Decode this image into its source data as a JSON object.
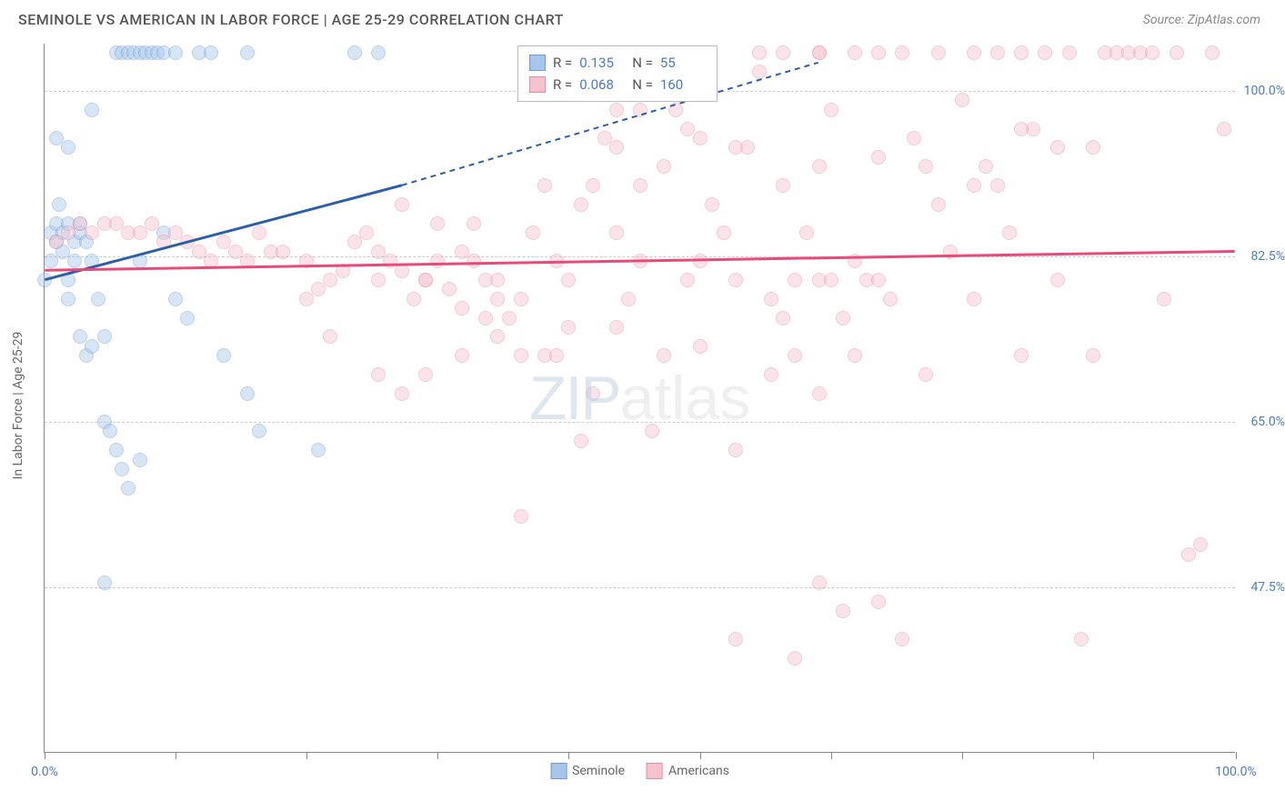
{
  "title": "SEMINOLE VS AMERICAN IN LABOR FORCE | AGE 25-29 CORRELATION CHART",
  "source": "Source: ZipAtlas.com",
  "y_axis_title": "In Labor Force | Age 25-29",
  "watermark_a": "ZIP",
  "watermark_b": "atlas",
  "chart": {
    "type": "scatter",
    "background_color": "#ffffff",
    "grid_color": "#cccccc",
    "axis_color": "#888888",
    "xlim": [
      0,
      100
    ],
    "ylim": [
      30,
      105
    ],
    "x_tick_positions": [
      0,
      11,
      22,
      33,
      44,
      55,
      66,
      77,
      88,
      100
    ],
    "x_tick_labels": {
      "0": "0.0%",
      "100": "100.0%"
    },
    "y_grid": [
      {
        "v": 47.5,
        "label": "47.5%"
      },
      {
        "v": 65.0,
        "label": "65.0%"
      },
      {
        "v": 82.5,
        "label": "82.5%"
      },
      {
        "v": 100.0,
        "label": "100.0%"
      }
    ],
    "marker_size": 16,
    "marker_opacity": 0.45,
    "series": [
      {
        "name": "Seminole",
        "fill_color": "#a8c6eb",
        "stroke_color": "#6a9bd8",
        "trend_color": "#2c5fa8",
        "R": "0.135",
        "N": "55",
        "trend": {
          "x1": 0,
          "y1": 80,
          "x2": 30,
          "y2": 90,
          "dash_x2": 65,
          "dash_y2": 103
        },
        "points": [
          [
            0,
            80
          ],
          [
            0.5,
            82
          ],
          [
            0.5,
            85
          ],
          [
            1,
            86
          ],
          [
            1,
            84
          ],
          [
            1.2,
            88
          ],
          [
            1.5,
            85
          ],
          [
            1.5,
            83
          ],
          [
            2,
            86
          ],
          [
            2,
            80
          ],
          [
            2,
            78
          ],
          [
            2.5,
            84
          ],
          [
            2.5,
            82
          ],
          [
            3,
            85
          ],
          [
            3,
            86
          ],
          [
            3.5,
            84
          ],
          [
            4,
            82
          ],
          [
            1,
            95
          ],
          [
            2,
            94
          ],
          [
            3,
            74
          ],
          [
            3.5,
            72
          ],
          [
            4,
            73
          ],
          [
            5,
            74
          ],
          [
            4.5,
            78
          ],
          [
            5,
            65
          ],
          [
            5.5,
            64
          ],
          [
            6,
            104
          ],
          [
            6.5,
            104
          ],
          [
            7,
            104
          ],
          [
            7.5,
            104
          ],
          [
            8,
            104
          ],
          [
            8.5,
            104
          ],
          [
            9,
            104
          ],
          [
            9.5,
            104
          ],
          [
            10,
            104
          ],
          [
            11,
            104
          ],
          [
            13,
            104
          ],
          [
            14,
            104
          ],
          [
            17,
            104
          ],
          [
            28,
            104
          ],
          [
            6,
            62
          ],
          [
            7,
            58
          ],
          [
            8,
            82
          ],
          [
            10,
            85
          ],
          [
            11,
            78
          ],
          [
            12,
            76
          ],
          [
            15,
            72
          ],
          [
            17,
            68
          ],
          [
            18,
            64
          ],
          [
            23,
            62
          ],
          [
            26,
            104
          ],
          [
            4,
            98
          ],
          [
            5,
            48
          ],
          [
            6.5,
            60
          ],
          [
            8,
            61
          ]
        ]
      },
      {
        "name": "Americans",
        "fill_color": "#f5c3cf",
        "stroke_color": "#e88ba3",
        "trend_color": "#e84a7a",
        "R": "0.068",
        "N": "160",
        "trend": {
          "x1": 0,
          "y1": 81,
          "x2": 100,
          "y2": 83
        },
        "points": [
          [
            1,
            84
          ],
          [
            2,
            85
          ],
          [
            3,
            86
          ],
          [
            4,
            85
          ],
          [
            5,
            86
          ],
          [
            6,
            86
          ],
          [
            7,
            85
          ],
          [
            8,
            85
          ],
          [
            9,
            86
          ],
          [
            10,
            84
          ],
          [
            11,
            85
          ],
          [
            12,
            84
          ],
          [
            13,
            83
          ],
          [
            14,
            82
          ],
          [
            15,
            84
          ],
          [
            16,
            83
          ],
          [
            17,
            82
          ],
          [
            18,
            85
          ],
          [
            19,
            83
          ],
          [
            20,
            83
          ],
          [
            22,
            82
          ],
          [
            23,
            79
          ],
          [
            24,
            80
          ],
          [
            25,
            81
          ],
          [
            26,
            84
          ],
          [
            27,
            85
          ],
          [
            28,
            83
          ],
          [
            29,
            82
          ],
          [
            30,
            81
          ],
          [
            31,
            78
          ],
          [
            32,
            80
          ],
          [
            33,
            82
          ],
          [
            34,
            79
          ],
          [
            35,
            83
          ],
          [
            36,
            82
          ],
          [
            37,
            80
          ],
          [
            38,
            74
          ],
          [
            39,
            76
          ],
          [
            40,
            72
          ],
          [
            41,
            85
          ],
          [
            42,
            90
          ],
          [
            43,
            82
          ],
          [
            44,
            75
          ],
          [
            45,
            88
          ],
          [
            46,
            68
          ],
          [
            47,
            95
          ],
          [
            48,
            85
          ],
          [
            49,
            78
          ],
          [
            50,
            82
          ],
          [
            51,
            64
          ],
          [
            52,
            92
          ],
          [
            53,
            98
          ],
          [
            54,
            80
          ],
          [
            55,
            73
          ],
          [
            56,
            88
          ],
          [
            57,
            85
          ],
          [
            58,
            62
          ],
          [
            59,
            94
          ],
          [
            60,
            102
          ],
          [
            61,
            78
          ],
          [
            62,
            90
          ],
          [
            63,
            72
          ],
          [
            64,
            85
          ],
          [
            65,
            68
          ],
          [
            66,
            98
          ],
          [
            67,
            45
          ],
          [
            68,
            82
          ],
          [
            69,
            80
          ],
          [
            70,
            93
          ],
          [
            71,
            78
          ],
          [
            72,
            42
          ],
          [
            73,
            95
          ],
          [
            74,
            70
          ],
          [
            75,
            88
          ],
          [
            76,
            83
          ],
          [
            77,
            99
          ],
          [
            78,
            78
          ],
          [
            79,
            92
          ],
          [
            80,
            104
          ],
          [
            81,
            85
          ],
          [
            82,
            72
          ],
          [
            83,
            96
          ],
          [
            84,
            104
          ],
          [
            85,
            80
          ],
          [
            86,
            104
          ],
          [
            87,
            42
          ],
          [
            88,
            94
          ],
          [
            89,
            104
          ],
          [
            90,
            104
          ],
          [
            91,
            104
          ],
          [
            92,
            104
          ],
          [
            93,
            104
          ],
          [
            94,
            78
          ],
          [
            95,
            104
          ],
          [
            96,
            51
          ],
          [
            97,
            52
          ],
          [
            98,
            104
          ],
          [
            99,
            96
          ],
          [
            60,
            104
          ],
          [
            62,
            104
          ],
          [
            65,
            104
          ],
          [
            68,
            104
          ],
          [
            48,
            94
          ],
          [
            50,
            98
          ],
          [
            55,
            95
          ],
          [
            40,
            55
          ],
          [
            65,
            48
          ],
          [
            28,
            70
          ],
          [
            30,
            68
          ],
          [
            32,
            70
          ],
          [
            35,
            72
          ],
          [
            58,
            94
          ],
          [
            35,
            77
          ],
          [
            38,
            78
          ],
          [
            78,
            104
          ],
          [
            45,
            63
          ],
          [
            52,
            72
          ],
          [
            40,
            78
          ],
          [
            42,
            72
          ],
          [
            63,
            80
          ],
          [
            65,
            80
          ],
          [
            70,
            80
          ],
          [
            68,
            72
          ],
          [
            74,
            92
          ],
          [
            78,
            90
          ],
          [
            54,
            96
          ],
          [
            58,
            80
          ],
          [
            50,
            90
          ],
          [
            80,
            90
          ],
          [
            82,
            96
          ],
          [
            85,
            94
          ],
          [
            46,
            90
          ],
          [
            48,
            75
          ],
          [
            82,
            104
          ],
          [
            48,
            98
          ],
          [
            63,
            40
          ],
          [
            70,
            46
          ],
          [
            70,
            104
          ],
          [
            72,
            104
          ],
          [
            75,
            104
          ],
          [
            65,
            92
          ],
          [
            22,
            78
          ],
          [
            24,
            74
          ],
          [
            88,
            72
          ],
          [
            28,
            80
          ],
          [
            67,
            76
          ],
          [
            55,
            82
          ],
          [
            36,
            86
          ],
          [
            32,
            80
          ],
          [
            38,
            80
          ],
          [
            33,
            86
          ],
          [
            37,
            76
          ],
          [
            61,
            70
          ],
          [
            43,
            72
          ],
          [
            58,
            42
          ],
          [
            30,
            88
          ],
          [
            44,
            80
          ],
          [
            62,
            76
          ],
          [
            66,
            80
          ],
          [
            65,
            104
          ]
        ]
      }
    ]
  },
  "bottom_legend": [
    {
      "label": "Seminole",
      "fill": "#a8c6eb",
      "stroke": "#6a9bd8"
    },
    {
      "label": "Americans",
      "fill": "#f5c3cf",
      "stroke": "#e88ba3"
    }
  ],
  "legend_labels": {
    "R": "R =",
    "N": "N ="
  }
}
